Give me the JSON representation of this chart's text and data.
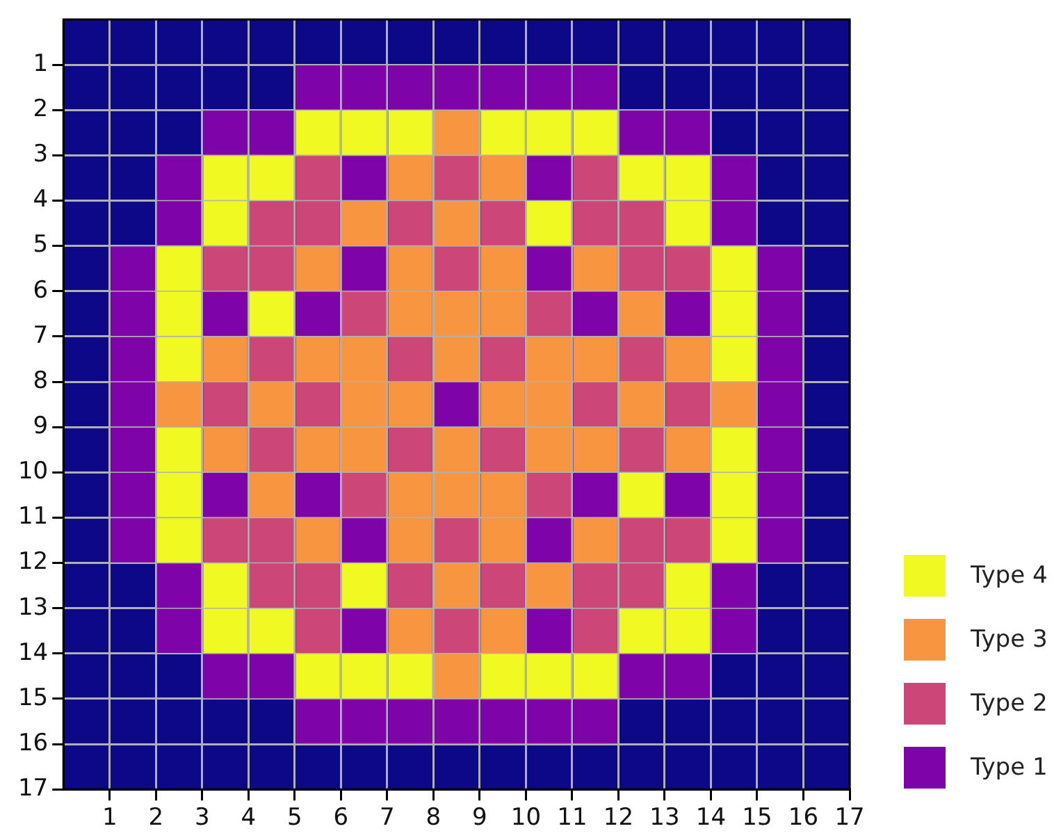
{
  "chart_data": {
    "type": "scatter",
    "xlim": [
      0,
      17
    ],
    "xticks": [
      1,
      2,
      3,
      4,
      5,
      6,
      7,
      8,
      9,
      10,
      11,
      12,
      13,
      14,
      15,
      16,
      17
    ],
    "ylim": [
      17,
      0
    ],
    "yticks": [
      1,
      2,
      3,
      4,
      5,
      6,
      7,
      8,
      9,
      10,
      11,
      12,
      13,
      14,
      15,
      16,
      17
    ],
    "grid": true,
    "legend": "bottom right",
    "marker": "square",
    "series": [
      {
        "name": "Type 4",
        "color": "#f0f921",
        "x": [
          5.5,
          6.5,
          7.5,
          9.5,
          10.5,
          11.5,
          3.5,
          4.5,
          12.5,
          13.5,
          3.5,
          10.5,
          13.5,
          2.5,
          14.5,
          2.5,
          4.5,
          14.5,
          2.5,
          14.5,
          2.5,
          14.5,
          2.5,
          12.5,
          14.5,
          2.5,
          14.5,
          3.5,
          6.5,
          13.5,
          3.5,
          4.5,
          12.5,
          13.5,
          5.5,
          6.5,
          7.5,
          9.5,
          10.5,
          11.5
        ],
        "values": [
          2.5,
          2.5,
          2.5,
          2.5,
          2.5,
          2.5,
          3.5,
          3.5,
          3.5,
          3.5,
          4.5,
          4.5,
          4.5,
          5.5,
          5.5,
          6.5,
          6.5,
          6.5,
          7.5,
          7.5,
          9.5,
          9.5,
          10.5,
          10.5,
          10.5,
          11.5,
          11.5,
          12.5,
          12.5,
          12.5,
          13.5,
          13.5,
          13.5,
          13.5,
          14.5,
          14.5,
          14.5,
          14.5,
          14.5,
          14.5
        ]
      },
      {
        "name": "Type 3",
        "color": "#f89540",
        "x": [
          8.5,
          7.5,
          9.5,
          6.5,
          8.5,
          5.5,
          7.5,
          9.5,
          11.5,
          7.5,
          8.5,
          9.5,
          12.5,
          3.5,
          5.5,
          6.5,
          8.5,
          10.5,
          11.5,
          13.5,
          2.5,
          4.5,
          6.5,
          7.5,
          9.5,
          10.5,
          12.5,
          14.5,
          3.5,
          5.5,
          6.5,
          8.5,
          10.5,
          11.5,
          13.5,
          4.5,
          7.5,
          8.5,
          9.5,
          5.5,
          7.5,
          9.5,
          11.5,
          8.5,
          10.5,
          7.5,
          9.5,
          8.5
        ],
        "values": [
          2.5,
          3.5,
          3.5,
          4.5,
          4.5,
          5.5,
          5.5,
          5.5,
          5.5,
          6.5,
          6.5,
          6.5,
          6.5,
          7.5,
          7.5,
          7.5,
          7.5,
          7.5,
          7.5,
          7.5,
          8.5,
          8.5,
          8.5,
          8.5,
          8.5,
          8.5,
          8.5,
          8.5,
          9.5,
          9.5,
          9.5,
          9.5,
          9.5,
          9.5,
          9.5,
          10.5,
          10.5,
          10.5,
          10.5,
          11.5,
          11.5,
          11.5,
          11.5,
          12.5,
          12.5,
          13.5,
          13.5,
          14.5
        ]
      },
      {
        "name": "Type 2",
        "color": "#cc4778",
        "x": [
          5.5,
          8.5,
          11.5,
          4.5,
          5.5,
          7.5,
          9.5,
          11.5,
          12.5,
          3.5,
          4.5,
          8.5,
          12.5,
          13.5,
          6.5,
          10.5,
          4.5,
          7.5,
          9.5,
          12.5,
          3.5,
          5.5,
          11.5,
          13.5,
          4.5,
          7.5,
          9.5,
          12.5,
          6.5,
          10.5,
          3.5,
          4.5,
          8.5,
          12.5,
          13.5,
          4.5,
          5.5,
          7.5,
          9.5,
          11.5,
          12.5,
          5.5,
          8.5,
          11.5
        ],
        "values": [
          3.5,
          3.5,
          3.5,
          4.5,
          4.5,
          4.5,
          4.5,
          4.5,
          4.5,
          5.5,
          5.5,
          5.5,
          5.5,
          5.5,
          6.5,
          6.5,
          7.5,
          7.5,
          7.5,
          7.5,
          8.5,
          8.5,
          8.5,
          8.5,
          9.5,
          9.5,
          9.5,
          9.5,
          10.5,
          10.5,
          11.5,
          11.5,
          11.5,
          11.5,
          11.5,
          12.5,
          12.5,
          12.5,
          12.5,
          12.5,
          12.5,
          13.5,
          13.5,
          13.5
        ]
      },
      {
        "name": "Type 1",
        "color": "#7e03a8",
        "x": [
          5.5,
          6.5,
          7.5,
          8.5,
          9.5,
          10.5,
          11.5,
          3.5,
          4.5,
          12.5,
          13.5,
          2.5,
          6.5,
          10.5,
          14.5,
          2.5,
          14.5,
          1.5,
          6.5,
          10.5,
          15.5,
          1.5,
          3.5,
          5.5,
          11.5,
          13.5,
          15.5,
          1.5,
          15.5,
          1.5,
          8.5,
          15.5,
          1.5,
          15.5,
          1.5,
          3.5,
          5.5,
          11.5,
          13.5,
          15.5,
          1.5,
          6.5,
          10.5,
          15.5,
          2.5,
          14.5,
          2.5,
          6.5,
          10.5,
          14.5,
          3.5,
          4.5,
          12.5,
          13.5,
          5.5,
          6.5,
          7.5,
          8.5,
          9.5,
          10.5,
          11.5
        ],
        "values": [
          1.5,
          1.5,
          1.5,
          1.5,
          1.5,
          1.5,
          1.5,
          2.5,
          2.5,
          2.5,
          2.5,
          3.5,
          3.5,
          3.5,
          3.5,
          4.5,
          4.5,
          5.5,
          5.5,
          5.5,
          5.5,
          6.5,
          6.5,
          6.5,
          6.5,
          6.5,
          6.5,
          7.5,
          7.5,
          8.5,
          8.5,
          8.5,
          9.5,
          9.5,
          10.5,
          10.5,
          10.5,
          10.5,
          10.5,
          10.5,
          11.5,
          11.5,
          11.5,
          11.5,
          12.5,
          12.5,
          13.5,
          13.5,
          13.5,
          13.5,
          14.5,
          14.5,
          14.5,
          14.5,
          15.5,
          15.5,
          15.5,
          15.5,
          15.5,
          15.5,
          15.5
        ]
      }
    ]
  }
}
